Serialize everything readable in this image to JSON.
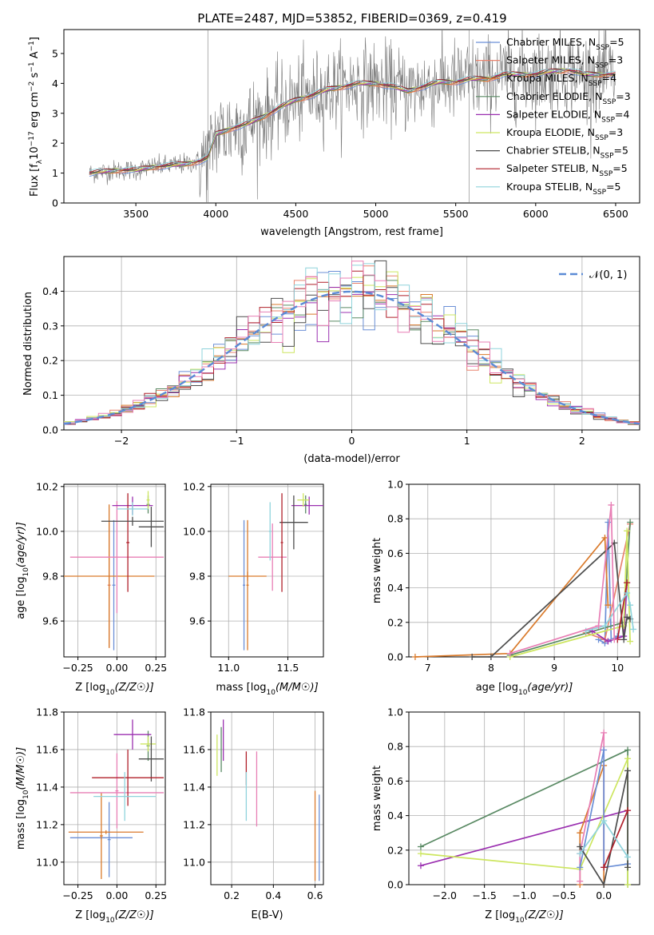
{
  "figure": {
    "title": "PLATE=2487, MJD=53852, FIBERID=0369, z=0.419"
  },
  "colors": {
    "chabrier_miles": "#6b8fd6",
    "salpeter_miles": "#e8836e",
    "kroupa_miles": "#d97a2b",
    "chabrier_elodie": "#5a8a64",
    "salpeter_elodie": "#9b30b0",
    "kroupa_elodie": "#cde660",
    "chabrier_stelib": "#4d4d4d",
    "salpeter_stelib": "#b0202a",
    "kroupa_stelib": "#8fd3dc",
    "pink": "#e87fb5",
    "data_spectrum": "#7a7a7a",
    "normal_curve": "#5b8bd6",
    "grid": "#b0b0b0"
  },
  "chart_data": [
    {
      "id": "spectrum",
      "type": "line",
      "xlabel": "wavelength [Angstrom, rest frame]",
      "ylabel": "Flux [f_λ10^-17 erg cm^-2 s^-1 A^-1]",
      "xlim": [
        3050,
        6650
      ],
      "ylim": [
        0,
        5.8
      ],
      "xticks": [
        3500,
        4000,
        4500,
        5000,
        5500,
        6000,
        6500
      ],
      "yticks": [
        0,
        1,
        2,
        3,
        4,
        5
      ],
      "grid": false,
      "legend_position": "top-right",
      "legend": [
        {
          "label": "Chabrier MILES, N_SSP=5",
          "color_key": "chabrier_miles"
        },
        {
          "label": "Salpeter MILES, N_SSP=3",
          "color_key": "salpeter_miles"
        },
        {
          "label": "Kroupa MILES, N_SSP=4",
          "color_key": "kroupa_miles"
        },
        {
          "label": "Chabrier ELODIE, N_SSP=3",
          "color_key": "chabrier_elodie"
        },
        {
          "label": "Salpeter ELODIE, N_SSP=4",
          "color_key": "salpeter_elodie"
        },
        {
          "label": "Kroupa ELODIE, N_SSP=3",
          "color_key": "kroupa_elodie"
        },
        {
          "label": "Chabrier STELIB, N_SSP=5",
          "color_key": "chabrier_stelib"
        },
        {
          "label": "Salpeter STELIB, N_SSP=5",
          "color_key": "salpeter_stelib"
        },
        {
          "label": "Kroupa STELIB, N_SSP=5",
          "color_key": "kroupa_stelib"
        }
      ],
      "model_continuum": {
        "x": [
          3210,
          3300,
          3400,
          3500,
          3600,
          3700,
          3800,
          3900,
          3950,
          4000,
          4100,
          4200,
          4300,
          4400,
          4500,
          4600,
          4700,
          4800,
          4900,
          5000,
          5100,
          5200,
          5300,
          5400,
          5500,
          5600,
          5700,
          5800,
          5900,
          6000,
          6100,
          6200,
          6300,
          6400,
          6500
        ],
        "y": [
          1.0,
          1.05,
          1.1,
          1.1,
          1.2,
          1.25,
          1.3,
          1.4,
          1.5,
          2.3,
          2.5,
          2.65,
          2.9,
          3.2,
          3.45,
          3.6,
          3.8,
          3.9,
          4.0,
          4.0,
          3.9,
          3.75,
          3.9,
          4.05,
          4.05,
          4.15,
          4.15,
          4.3,
          4.3,
          4.3,
          4.4,
          4.45,
          4.3,
          4.3,
          4.3
        ]
      },
      "data_spectrum": {
        "x_start": 3210,
        "x_end": 6500,
        "noise_level": 0.7
      }
    },
    {
      "id": "residuals",
      "type": "histogram",
      "xlabel": "(data-model)/error",
      "ylabel": "Normed distribution",
      "xlim": [
        -2.5,
        2.5
      ],
      "ylim": [
        0,
        0.5
      ],
      "xticks": [
        -2,
        -1,
        0,
        1,
        2
      ],
      "yticks": [
        0.0,
        0.1,
        0.2,
        0.3,
        0.4
      ],
      "grid": true,
      "legend_position": "top-right",
      "legend": [
        {
          "label": "𝒩(0, 1)",
          "color_key": "normal_curve"
        }
      ],
      "bin_width": 0.1
    },
    {
      "id": "age_vs_Z",
      "type": "errorbar",
      "xlabel": "Z [log10(Z/Z☉)]",
      "ylabel": "age  [log10(age/yr)]",
      "xlim": [
        -0.34,
        0.31
      ],
      "ylim": [
        9.44,
        10.21
      ],
      "xticks": [
        -0.25,
        0.0,
        0.25
      ],
      "xtick_labels": [
        "−0.25",
        "0.00",
        "0.25"
      ],
      "yticks": [
        9.6,
        9.8,
        10.0,
        10.2
      ],
      "grid": true,
      "points": [
        {
          "color_key": "chabrier_miles",
          "x": -0.02,
          "xerr": 0.01,
          "y": 9.76,
          "yerr": 0.29
        },
        {
          "color_key": "salpeter_miles",
          "x": -0.05,
          "xerr": 0.01,
          "y": 9.76,
          "yerr": 0.28
        },
        {
          "color_key": "kroupa_miles",
          "x": -0.05,
          "xerr": 0.29,
          "y": 9.8,
          "yerr": 0.32
        },
        {
          "color_key": "pink",
          "x": 0.0,
          "xerr": 0.3,
          "y": 9.885,
          "yerr": 0.25
        },
        {
          "color_key": "chabrier_elodie",
          "x": 0.2,
          "xerr": 0.01,
          "y": 10.12,
          "yerr": 0.04
        },
        {
          "color_key": "salpeter_elodie",
          "x": 0.1,
          "xerr": 0.13,
          "y": 10.115,
          "yerr": 0.04
        },
        {
          "color_key": "kroupa_elodie",
          "x": 0.2,
          "xerr": 0.01,
          "y": 10.14,
          "yerr": 0.04
        },
        {
          "color_key": "chabrier_stelib",
          "x": 0.22,
          "xerr": 0.08,
          "y": 10.02,
          "yerr": 0.09
        },
        {
          "color_key": "salpeter_stelib",
          "x": 0.07,
          "xerr": 0.01,
          "y": 9.95,
          "yerr": 0.22
        },
        {
          "color_key": "kroupa_stelib",
          "x": 0.1,
          "xerr": 0.1,
          "y": 10.1,
          "yerr": 0.03
        },
        {
          "color_key": "chabrier_stelib",
          "x": 0.1,
          "xerr": 0.2,
          "y": 10.045,
          "yerr": 0.02
        }
      ]
    },
    {
      "id": "age_vs_mass",
      "type": "errorbar",
      "xlabel": "mass [log10(M/M☉)]",
      "ylabel": "",
      "xlim": [
        10.85,
        11.8
      ],
      "ylim": [
        9.44,
        10.21
      ],
      "xticks": [
        11.0,
        11.5
      ],
      "yticks": [
        9.6,
        9.8,
        10.0,
        10.2
      ],
      "grid": true,
      "points": [
        {
          "color_key": "chabrier_miles",
          "x": 11.13,
          "xerr": 0.01,
          "y": 9.76,
          "yerr": 0.29
        },
        {
          "color_key": "kroupa_miles",
          "x": 11.16,
          "xerr": 0.01,
          "y": 9.76,
          "yerr": 0.29
        },
        {
          "color_key": "kroupa_miles",
          "x": 11.16,
          "xerr": 0.16,
          "y": 9.8,
          "yerr": 0.02
        },
        {
          "color_key": "pink",
          "x": 11.37,
          "xerr": 0.12,
          "y": 9.885,
          "yerr": 0.15
        },
        {
          "color_key": "chabrier_elodie",
          "x": 11.65,
          "xerr": 0.01,
          "y": 10.12,
          "yerr": 0.04
        },
        {
          "color_key": "salpeter_elodie",
          "x": 11.68,
          "xerr": 0.15,
          "y": 10.115,
          "yerr": 0.04
        },
        {
          "color_key": "kroupa_elodie",
          "x": 11.63,
          "xerr": 0.05,
          "y": 10.14,
          "yerr": 0.03
        },
        {
          "color_key": "chabrier_stelib",
          "x": 11.55,
          "xerr": 0.12,
          "y": 10.04,
          "yerr": 0.12
        },
        {
          "color_key": "salpeter_stelib",
          "x": 11.45,
          "xerr": 0.01,
          "y": 9.95,
          "yerr": 0.22
        },
        {
          "color_key": "kroupa_stelib",
          "x": 11.35,
          "xerr": 0.01,
          "y": 10.0,
          "yerr": 0.13
        }
      ]
    },
    {
      "id": "weight_vs_age",
      "type": "line",
      "xlabel": "age  [log10(age/yr)]",
      "ylabel": "mass weight",
      "xlim": [
        6.7,
        10.35
      ],
      "ylim": [
        0.0,
        1.0
      ],
      "xticks": [
        7,
        8,
        9,
        10
      ],
      "yticks": [
        0.0,
        0.2,
        0.4,
        0.6,
        0.8,
        1.0
      ],
      "grid": true,
      "series": [
        {
          "color_key": "chabrier_miles",
          "x": [
            9.7,
            9.8,
            9.85,
            9.9,
            10.0
          ],
          "y": [
            0.1,
            0.08,
            0.78,
            0.1,
            0.12
          ]
        },
        {
          "color_key": "salpeter_miles",
          "x": [
            9.5,
            9.8,
            10.2
          ],
          "y": [
            0.14,
            0.1,
            0.77
          ]
        },
        {
          "color_key": "kroupa_miles",
          "x": [
            6.8,
            8.3,
            9.8,
            9.85
          ],
          "y": [
            0.0,
            0.02,
            0.69,
            0.3
          ]
        },
        {
          "color_key": "chabrier_elodie",
          "x": [
            8.3,
            10.1,
            10.2
          ],
          "y": [
            0.01,
            0.2,
            0.78
          ]
        },
        {
          "color_key": "salpeter_elodie",
          "x": [
            9.6,
            9.85,
            10.1,
            10.15
          ],
          "y": [
            0.15,
            0.09,
            0.12,
            0.43
          ]
        },
        {
          "color_key": "kroupa_elodie",
          "x": [
            8.3,
            10.1,
            10.15,
            10.2
          ],
          "y": [
            0.0,
            0.18,
            0.73,
            0.09
          ]
        },
        {
          "color_key": "chabrier_stelib",
          "x": [
            7.7,
            8.0,
            9.95,
            10.1,
            10.15,
            10.2
          ],
          "y": [
            0.0,
            0.0,
            0.66,
            0.1,
            0.23,
            0.22
          ]
        },
        {
          "color_key": "salpeter_stelib",
          "x": [
            10.0,
            10.15
          ],
          "y": [
            0.1,
            0.43
          ]
        },
        {
          "color_key": "kroupa_stelib",
          "x": [
            9.5,
            9.8,
            10.15,
            10.2,
            10.25
          ],
          "y": [
            0.15,
            0.18,
            0.37,
            0.3,
            0.16
          ]
        },
        {
          "color_key": "pink",
          "x": [
            8.3,
            9.7,
            9.9,
            9.95
          ],
          "y": [
            0.02,
            0.18,
            0.88,
            0.1
          ]
        }
      ]
    },
    {
      "id": "mass_vs_Z",
      "type": "errorbar",
      "xlabel": "Z [log10(Z/Z☉)]",
      "ylabel": "mass [log10(M/M☉)]",
      "xlim": [
        -0.34,
        0.31
      ],
      "ylim": [
        10.88,
        11.8
      ],
      "xticks": [
        -0.25,
        0.0,
        0.25
      ],
      "xtick_labels": [
        "−0.25",
        "0.00",
        "0.25"
      ],
      "yticks": [
        11.0,
        11.2,
        11.4,
        11.6,
        11.8
      ],
      "grid": true,
      "points": [
        {
          "color_key": "chabrier_miles",
          "x": -0.1,
          "xerr": 0.2,
          "y": 11.13,
          "yerr": 0.01
        },
        {
          "color_key": "chabrier_miles",
          "x": -0.05,
          "xerr": 0.01,
          "y": 11.12,
          "yerr": 0.2
        },
        {
          "color_key": "kroupa_miles",
          "x": -0.07,
          "xerr": 0.24,
          "y": 11.16,
          "yerr": 0.01
        },
        {
          "color_key": "kroupa_miles",
          "x": -0.1,
          "xerr": 0.01,
          "y": 11.14,
          "yerr": 0.23
        },
        {
          "color_key": "pink",
          "x": 0.0,
          "xerr": 0.3,
          "y": 11.37,
          "yerr": 0.01
        },
        {
          "color_key": "pink",
          "x": 0.0,
          "xerr": 0.01,
          "y": 11.38,
          "yerr": 0.2
        },
        {
          "color_key": "chabrier_elodie",
          "x": 0.2,
          "xerr": 0.01,
          "y": 11.62,
          "yerr": 0.08
        },
        {
          "color_key": "salpeter_elodie",
          "x": 0.1,
          "xerr": 0.12,
          "y": 11.68,
          "yerr": 0.08
        },
        {
          "color_key": "kroupa_elodie",
          "x": 0.2,
          "xerr": 0.05,
          "y": 11.63,
          "yerr": 0.04
        },
        {
          "color_key": "chabrier_stelib",
          "x": 0.22,
          "xerr": 0.08,
          "y": 11.55,
          "yerr": 0.12
        },
        {
          "color_key": "salpeter_stelib",
          "x": 0.07,
          "xerr": 0.23,
          "y": 11.45,
          "yerr": 0.15
        },
        {
          "color_key": "kroupa_stelib",
          "x": 0.05,
          "xerr": 0.2,
          "y": 11.35,
          "yerr": 0.13
        }
      ]
    },
    {
      "id": "mass_vs_ebv",
      "type": "errorbar",
      "xlabel": "E(B-V)",
      "ylabel": "",
      "xlim": [
        0.1,
        0.64
      ],
      "ylim": [
        10.88,
        11.8
      ],
      "xticks": [
        0.2,
        0.4,
        0.6
      ],
      "yticks": [
        11.0,
        11.2,
        11.4,
        11.6,
        11.8
      ],
      "grid": true,
      "points": [
        {
          "color_key": "chabrier_miles",
          "x": 0.62,
          "xerr": 0.0,
          "y": 11.13,
          "yerr": 0.23
        },
        {
          "color_key": "kroupa_miles",
          "x": 0.6,
          "xerr": 0.0,
          "y": 11.14,
          "yerr": 0.24
        },
        {
          "color_key": "pink",
          "x": 0.32,
          "xerr": 0.0,
          "y": 11.39,
          "yerr": 0.2
        },
        {
          "color_key": "chabrier_elodie",
          "x": 0.15,
          "xerr": 0.0,
          "y": 11.6,
          "yerr": 0.12
        },
        {
          "color_key": "salpeter_elodie",
          "x": 0.16,
          "xerr": 0.0,
          "y": 11.65,
          "yerr": 0.11
        },
        {
          "color_key": "kroupa_elodie",
          "x": 0.13,
          "xerr": 0.0,
          "y": 11.57,
          "yerr": 0.11
        },
        {
          "color_key": "salpeter_stelib",
          "x": 0.27,
          "xerr": 0.0,
          "y": 11.5,
          "yerr": 0.09
        },
        {
          "color_key": "kroupa_stelib",
          "x": 0.27,
          "xerr": 0.0,
          "y": 11.35,
          "yerr": 0.13
        }
      ]
    },
    {
      "id": "weight_vs_Z",
      "type": "line",
      "xlabel": "Z [log10(Z/Z☉)]",
      "ylabel": "mass weight",
      "xlim": [
        -2.45,
        0.45
      ],
      "ylim": [
        0.0,
        1.0
      ],
      "xticks": [
        -2.0,
        -1.5,
        -1.0,
        -0.5,
        0.0
      ],
      "xtick_labels": [
        "−2.0",
        "−1.5",
        "−1.0",
        "−0.5",
        "0.0"
      ],
      "yticks": [
        0.0,
        0.2,
        0.4,
        0.6,
        0.8,
        1.0
      ],
      "grid": true,
      "series": [
        {
          "color_key": "chabrier_elodie",
          "x": [
            -2.3,
            0.3,
            0.3
          ],
          "y": [
            0.22,
            0.78,
            0.0
          ]
        },
        {
          "color_key": "salpeter_elodie",
          "x": [
            -2.3,
            0.3
          ],
          "y": [
            0.11,
            0.43
          ]
        },
        {
          "color_key": "kroupa_elodie",
          "x": [
            -2.3,
            -0.3,
            0.3,
            0.3
          ],
          "y": [
            0.18,
            0.09,
            0.73,
            0.0
          ]
        },
        {
          "color_key": "kroupa_miles",
          "x": [
            -0.3,
            -0.3,
            0.0,
            0.0
          ],
          "y": [
            0.0,
            0.3,
            0.69,
            0.0
          ]
        },
        {
          "color_key": "pink",
          "x": [
            -0.3,
            -0.3,
            0.0,
            0.0
          ],
          "y": [
            0.02,
            0.18,
            0.88,
            0.1
          ]
        },
        {
          "color_key": "chabrier_miles",
          "x": [
            -0.3,
            0.0,
            0.0,
            0.3
          ],
          "y": [
            0.1,
            0.78,
            0.1,
            0.12
          ]
        },
        {
          "color_key": "chabrier_stelib",
          "x": [
            -0.3,
            0.0,
            0.3,
            0.3
          ],
          "y": [
            0.22,
            0.0,
            0.66,
            0.1
          ]
        },
        {
          "color_key": "salpeter_stelib",
          "x": [
            0.0,
            0.3
          ],
          "y": [
            0.1,
            0.43
          ]
        },
        {
          "color_key": "kroupa_stelib",
          "x": [
            -0.3,
            0.0,
            0.3
          ],
          "y": [
            0.18,
            0.37,
            0.16
          ]
        }
      ]
    }
  ]
}
